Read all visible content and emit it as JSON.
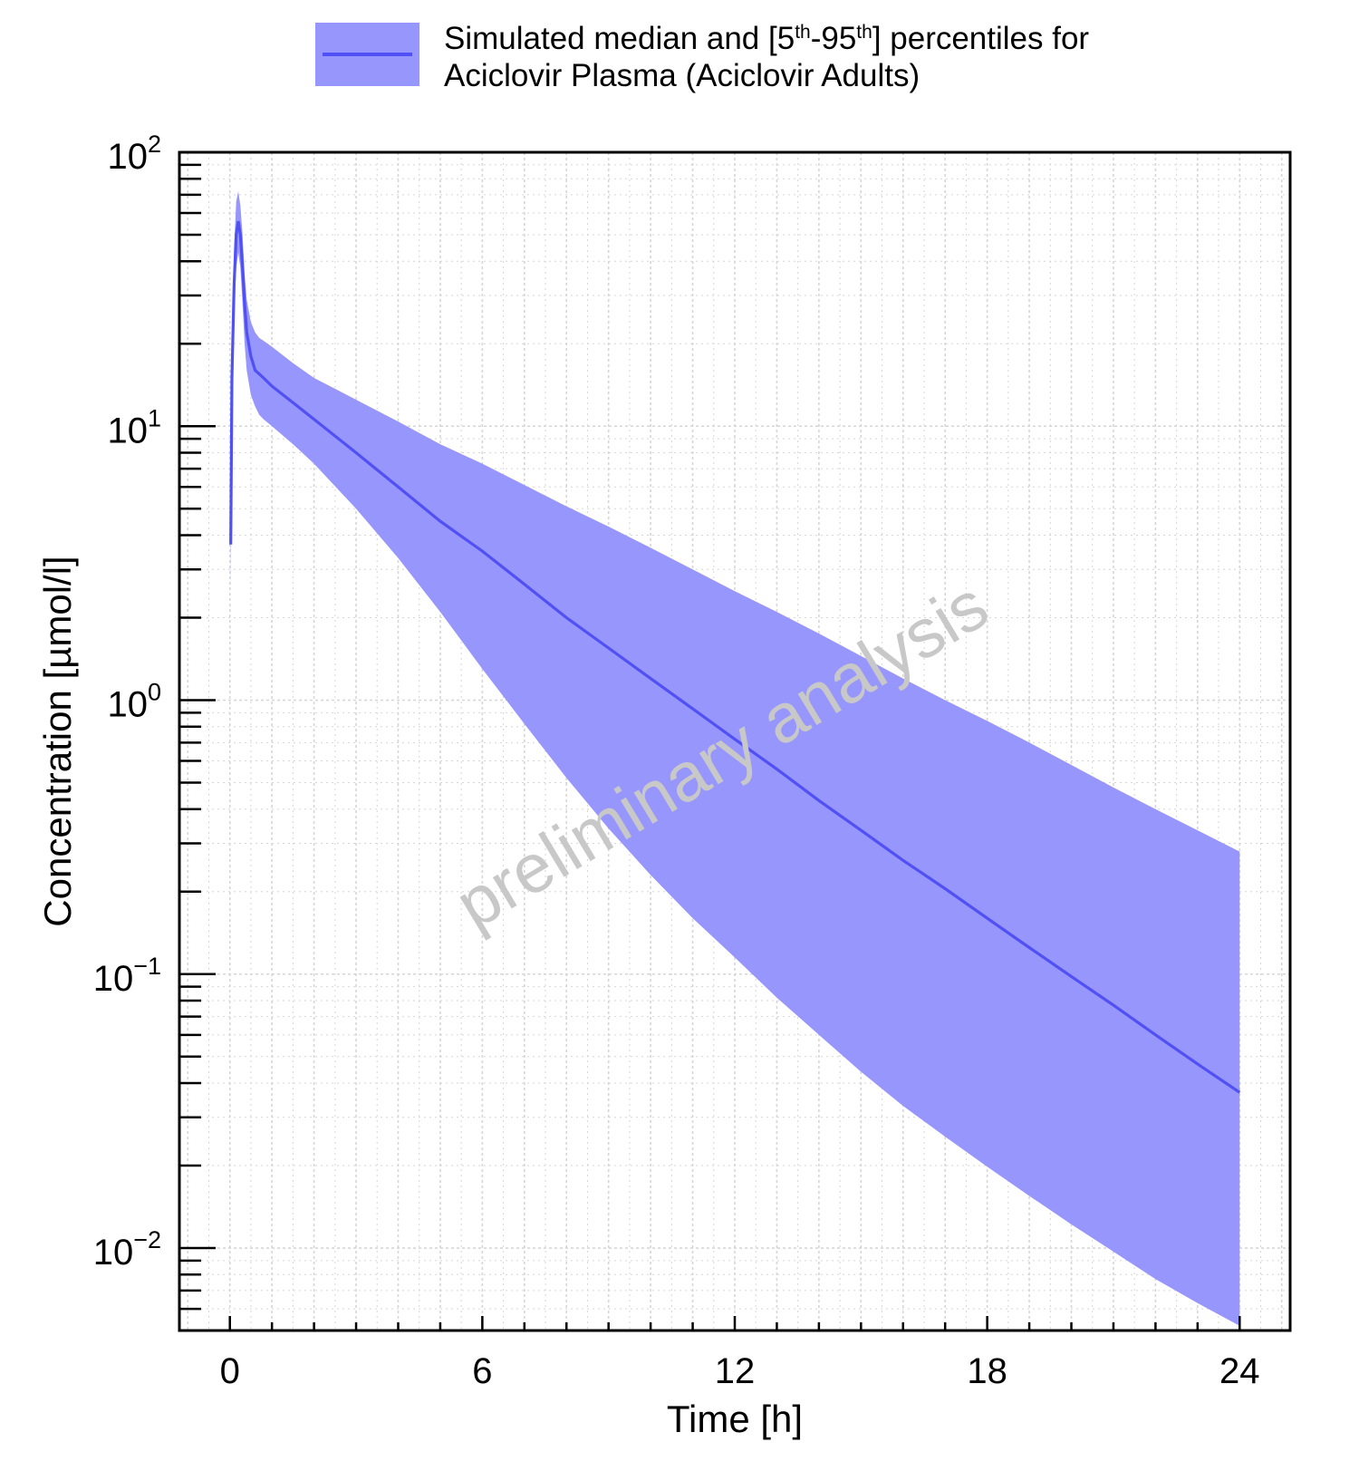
{
  "chart_data": {
    "type": "area",
    "title": "",
    "xlabel": "Time [h]",
    "ylabel": "Concentration [µmol/l]",
    "xlim": [
      -1.2,
      25.2
    ],
    "ylim": [
      0.005,
      100
    ],
    "yscale": "log",
    "x_ticks": [
      0,
      6,
      12,
      18,
      24
    ],
    "x_tick_labels": [
      "0",
      "6",
      "12",
      "18",
      "24"
    ],
    "y_ticks": [
      {
        "value": 100,
        "base": "10",
        "exp": "2"
      },
      {
        "value": 10,
        "base": "10",
        "exp": "1"
      },
      {
        "value": 1,
        "base": "10",
        "exp": "0"
      },
      {
        "value": 0.1,
        "base": "10",
        "exp": "−1"
      },
      {
        "value": 0.01,
        "base": "10",
        "exp": "−2"
      }
    ],
    "grid": true,
    "legend": {
      "position": "top",
      "line1_a": "Simulated median and [5",
      "sup1": "th",
      "line1_b": "-95",
      "sup2": "th",
      "line1_c": "] percentiles for",
      "line2": "Aciclovir Plasma (Aciclovir Adults)"
    },
    "watermark": "preliminary analysis",
    "series": [
      {
        "name": "Aciclovir Plasma (Aciclovir Adults)",
        "kind": "median_with_band",
        "x": [
          0.02,
          0.05,
          0.1,
          0.15,
          0.2,
          0.25,
          0.3,
          0.35,
          0.4,
          0.5,
          0.6,
          0.7,
          0.8,
          1.0,
          1.5,
          2,
          3,
          4,
          5,
          6,
          7,
          8,
          9,
          10,
          11,
          12,
          13,
          14,
          15,
          16,
          17,
          18,
          19,
          20,
          21,
          22,
          23,
          24
        ],
        "median": [
          3.7,
          15,
          33,
          50,
          56,
          50,
          38,
          28,
          22,
          18,
          16,
          15.5,
          15,
          14,
          12.2,
          10.6,
          8.0,
          6.0,
          4.5,
          3.5,
          2.65,
          2.0,
          1.55,
          1.2,
          0.93,
          0.72,
          0.56,
          0.43,
          0.335,
          0.26,
          0.205,
          0.16,
          0.125,
          0.098,
          0.077,
          0.06,
          0.047,
          0.037
        ],
        "p5": [
          2.5,
          11,
          25,
          38,
          43,
          38,
          28,
          20,
          16,
          13,
          11.8,
          11,
          10.6,
          10,
          8.6,
          7.3,
          5.0,
          3.3,
          2.1,
          1.3,
          0.82,
          0.52,
          0.34,
          0.23,
          0.16,
          0.115,
          0.082,
          0.06,
          0.044,
          0.033,
          0.0255,
          0.0198,
          0.0155,
          0.0122,
          0.0097,
          0.0077,
          0.0063,
          0.0052
        ],
        "p95": [
          4.7,
          20,
          45,
          66,
          72,
          64,
          50,
          36,
          29,
          24,
          22,
          21,
          20.5,
          19.5,
          17,
          15,
          12.5,
          10.4,
          8.6,
          7.3,
          6.1,
          5.1,
          4.3,
          3.6,
          3.0,
          2.5,
          2.1,
          1.75,
          1.45,
          1.2,
          1.0,
          0.84,
          0.7,
          0.58,
          0.48,
          0.4,
          0.335,
          0.28
        ]
      }
    ],
    "colors": {
      "band": "#9696fc",
      "median": "#5050f5",
      "axis": "#000000",
      "grid": "#d6d6d6"
    }
  }
}
